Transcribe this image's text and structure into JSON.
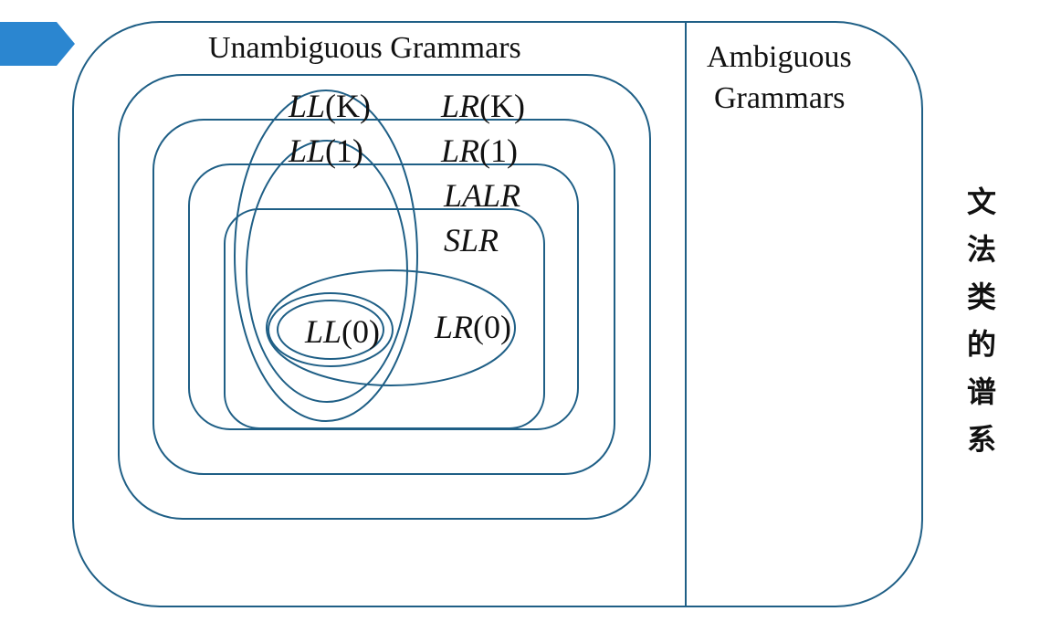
{
  "colors": {
    "stroke": "#1f5f86",
    "arrow": "#2b86d0",
    "text": "#111111"
  },
  "decoration": {
    "icon": "blue-arrow-tab"
  },
  "titles": {
    "unambiguous": "Unambiguous Grammars",
    "ambiguous_line1": "Ambiguous",
    "ambiguous_line2": "Grammars"
  },
  "classes": {
    "llk": {
      "it": "LL",
      "rest": "(K)"
    },
    "lrk": {
      "it": "LR",
      "rest": "(K)"
    },
    "ll1": {
      "it": "LL",
      "rest": "(1)"
    },
    "lr1": {
      "it": "LR",
      "rest": "(1)"
    },
    "lalr": {
      "it": "LALR",
      "rest": ""
    },
    "slr": {
      "it": "SLR",
      "rest": ""
    },
    "ll0": {
      "it": "LL",
      "rest": "(0)"
    },
    "lr0": {
      "it": "LR",
      "rest": "(0)"
    }
  },
  "side_title": [
    "文",
    "法",
    "类",
    "的",
    "谱",
    "系"
  ]
}
